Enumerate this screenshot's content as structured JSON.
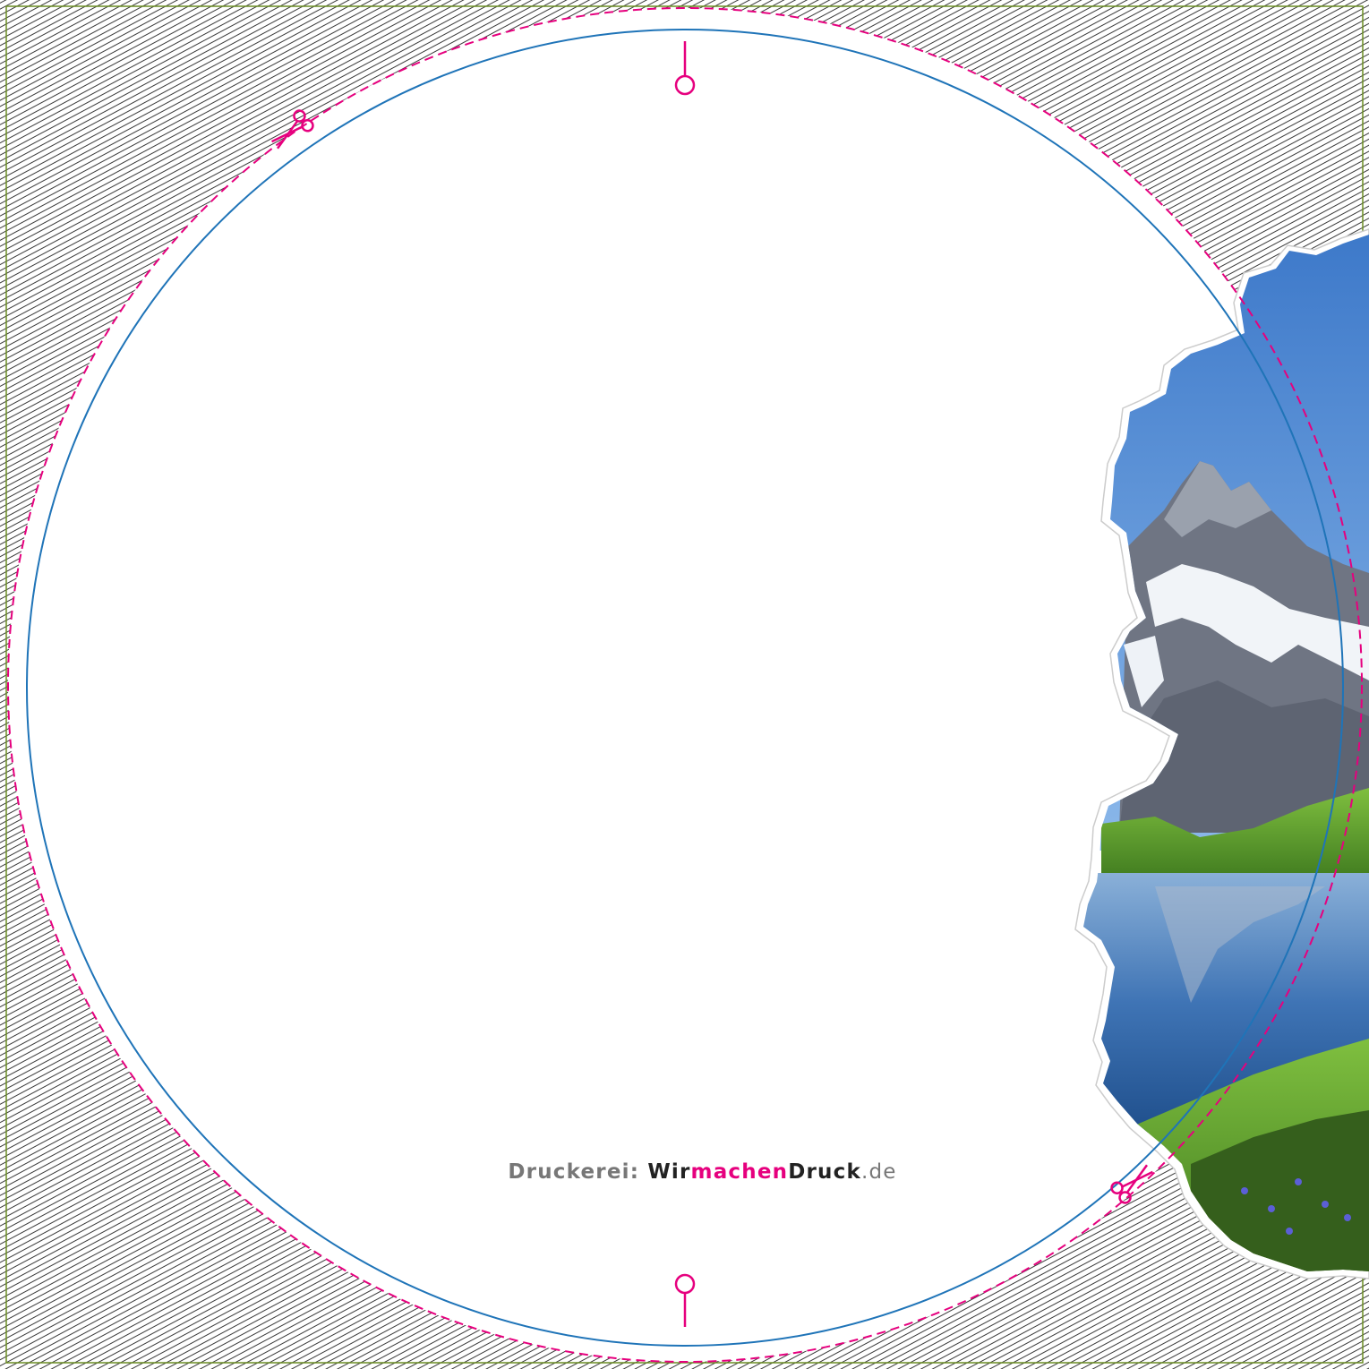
{
  "colors": {
    "trim_frame": "#6b8e23",
    "hatch": "#222222",
    "cut_line": "#e6007e",
    "safety_line": "#1f74b8",
    "markers": "#e6007e"
  },
  "icons": [
    "scissors-icon",
    "pin-marker-icon"
  ],
  "footer": {
    "label": "Druckerei:",
    "brand_part1": "Wir",
    "brand_part2": "machen",
    "brand_part3": "Druck",
    "domain": ".de"
  }
}
